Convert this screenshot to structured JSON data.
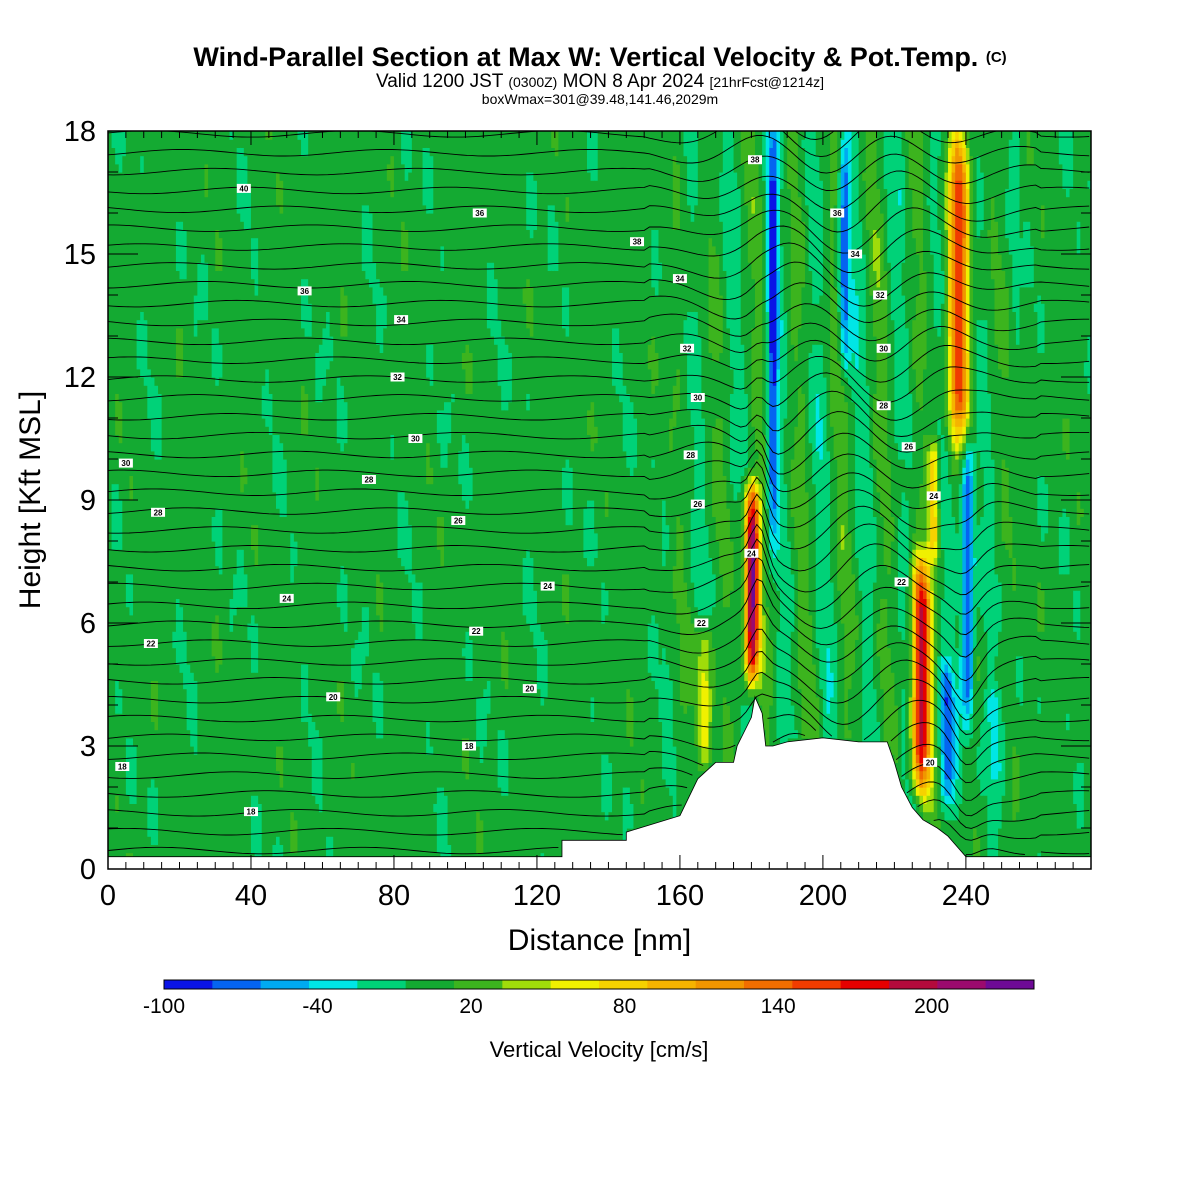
{
  "header": {
    "title": "Wind-Parallel Section at Max W: Vertical Velocity & Pot.Temp.",
    "title_mark": "(C)",
    "valid_prefix": "Valid 1200 JST",
    "valid_z": "(0300Z)",
    "valid_date": "MON 8 Apr 2024",
    "valid_fcst": "[21hrFcst@1214z]",
    "box_info": "boxWmax=301@39.48,141.46,2029m"
  },
  "chart_data": {
    "type": "heatmap",
    "title": "Wind-Parallel Section at Max W: Vertical Velocity & Pot.Temp.",
    "xlabel": "Distance [nm]",
    "ylabel": "Height [Kft MSL]",
    "xlim": [
      0,
      275
    ],
    "ylim": [
      0,
      18
    ],
    "x_ticks": [
      0,
      40,
      80,
      120,
      160,
      200,
      240
    ],
    "y_ticks": [
      0,
      3,
      6,
      9,
      12,
      15,
      18
    ],
    "grid": false,
    "colorbar": {
      "label": "Vertical Velocity [cm/s]",
      "tick_labels": [
        "-100",
        "-40",
        "20",
        "80",
        "140",
        "200"
      ],
      "tick_values": [
        -100,
        -40,
        20,
        80,
        140,
        200
      ],
      "bins": [
        -100,
        -80,
        -60,
        -40,
        -20,
        0,
        20,
        40,
        60,
        80,
        100,
        120,
        140,
        160,
        180,
        200,
        220,
        240
      ],
      "colors": [
        "#0a14e6",
        "#0564f0",
        "#00aaf0",
        "#00e6e6",
        "#00d278",
        "#14aa32",
        "#3cb41e",
        "#a0dc0a",
        "#f0f000",
        "#f5d200",
        "#f5b400",
        "#f09600",
        "#f06e00",
        "#f03c00",
        "#e60000",
        "#b40a3c",
        "#9b0a6e",
        "#6e0a96"
      ]
    },
    "terrain_profile": {
      "x": [
        0,
        127,
        127,
        145,
        145,
        160,
        165,
        170,
        175,
        176,
        180,
        181,
        183,
        184,
        186,
        190,
        200,
        210,
        218,
        220,
        222,
        225,
        228,
        232,
        235,
        238,
        240,
        275
      ],
      "height": [
        0.3,
        0.3,
        0.7,
        0.7,
        0.9,
        1.3,
        2.2,
        2.6,
        2.6,
        3.0,
        3.7,
        4.2,
        3.8,
        3.0,
        3.0,
        3.1,
        3.2,
        3.1,
        3.1,
        2.6,
        2.0,
        1.5,
        1.2,
        1.0,
        0.8,
        0.5,
        0.3,
        0.3
      ]
    },
    "velocity_features": [
      {
        "x": 180.2,
        "z_bottom": 4.5,
        "z_top": 9.4,
        "half_width": 2.0,
        "peak_w": 230
      },
      {
        "x": 227.5,
        "z_bottom": 1.8,
        "z_top": 7.5,
        "half_width": 2.6,
        "peak_w": 190
      },
      {
        "x": 238,
        "z_bottom": 10.5,
        "z_top": 18.0,
        "half_width": 2.8,
        "peak_w": 160
      },
      {
        "x": 231,
        "z_bottom": 7.5,
        "z_top": 10.5,
        "half_width": 1.5,
        "peak_w": 90
      },
      {
        "x": 167,
        "z_bottom": 2.5,
        "z_top": 6.0,
        "half_width": 2.0,
        "peak_w": 70
      },
      {
        "x": 186,
        "z_bottom": 8.0,
        "z_top": 18.0,
        "half_width": 1.4,
        "peak_w": -90
      },
      {
        "x": 206,
        "z_bottom": 12.0,
        "z_top": 18.0,
        "half_width": 1.5,
        "peak_w": -80
      },
      {
        "x": 240.5,
        "z_bottom": 3.5,
        "z_top": 10.5,
        "half_width": 1.8,
        "peak_w": -100
      },
      {
        "x": 234.5,
        "z_bottom": 1.5,
        "z_top": 5.0,
        "half_width": 2.2,
        "peak_w": -70
      },
      {
        "x": 248,
        "z_bottom": 2.0,
        "z_top": 4.5,
        "half_width": 3.5,
        "peak_w": -30
      }
    ],
    "theta_contour_labels": [
      {
        "x": 38,
        "z": 16.6,
        "label": "40"
      },
      {
        "x": 104,
        "z": 16.0,
        "label": "36"
      },
      {
        "x": 181,
        "z": 17.3,
        "label": "38"
      },
      {
        "x": 148,
        "z": 15.3,
        "label": "38"
      },
      {
        "x": 204,
        "z": 16.0,
        "label": "36"
      },
      {
        "x": 55,
        "z": 14.1,
        "label": "36"
      },
      {
        "x": 160,
        "z": 14.4,
        "label": "34"
      },
      {
        "x": 209,
        "z": 15.0,
        "label": "34"
      },
      {
        "x": 82,
        "z": 13.4,
        "label": "34"
      },
      {
        "x": 162,
        "z": 12.7,
        "label": "32"
      },
      {
        "x": 216,
        "z": 14.0,
        "label": "32"
      },
      {
        "x": 81,
        "z": 12.0,
        "label": "32"
      },
      {
        "x": 165,
        "z": 11.5,
        "label": "30"
      },
      {
        "x": 217,
        "z": 12.7,
        "label": "30"
      },
      {
        "x": 86,
        "z": 10.5,
        "label": "30"
      },
      {
        "x": 5,
        "z": 9.9,
        "label": "30"
      },
      {
        "x": 163,
        "z": 10.1,
        "label": "28"
      },
      {
        "x": 217,
        "z": 11.3,
        "label": "28"
      },
      {
        "x": 73,
        "z": 9.5,
        "label": "28"
      },
      {
        "x": 14,
        "z": 8.7,
        "label": "28"
      },
      {
        "x": 98,
        "z": 8.5,
        "label": "26"
      },
      {
        "x": 165,
        "z": 8.9,
        "label": "26"
      },
      {
        "x": 224,
        "z": 10.3,
        "label": "26"
      },
      {
        "x": 50,
        "z": 6.6,
        "label": "24"
      },
      {
        "x": 123,
        "z": 6.9,
        "label": "24"
      },
      {
        "x": 180,
        "z": 7.7,
        "label": "24"
      },
      {
        "x": 231,
        "z": 9.1,
        "label": "24"
      },
      {
        "x": 12,
        "z": 5.5,
        "label": "22"
      },
      {
        "x": 103,
        "z": 5.8,
        "label": "22"
      },
      {
        "x": 166,
        "z": 6.0,
        "label": "22"
      },
      {
        "x": 222,
        "z": 7.0,
        "label": "22"
      },
      {
        "x": 63,
        "z": 4.2,
        "label": "20"
      },
      {
        "x": 118,
        "z": 4.4,
        "label": "20"
      },
      {
        "x": 230,
        "z": 2.6,
        "label": "20"
      },
      {
        "x": 4,
        "z": 2.5,
        "label": "18"
      },
      {
        "x": 101,
        "z": 3.0,
        "label": "18"
      },
      {
        "x": 40,
        "z": 1.4,
        "label": "18"
      }
    ]
  }
}
